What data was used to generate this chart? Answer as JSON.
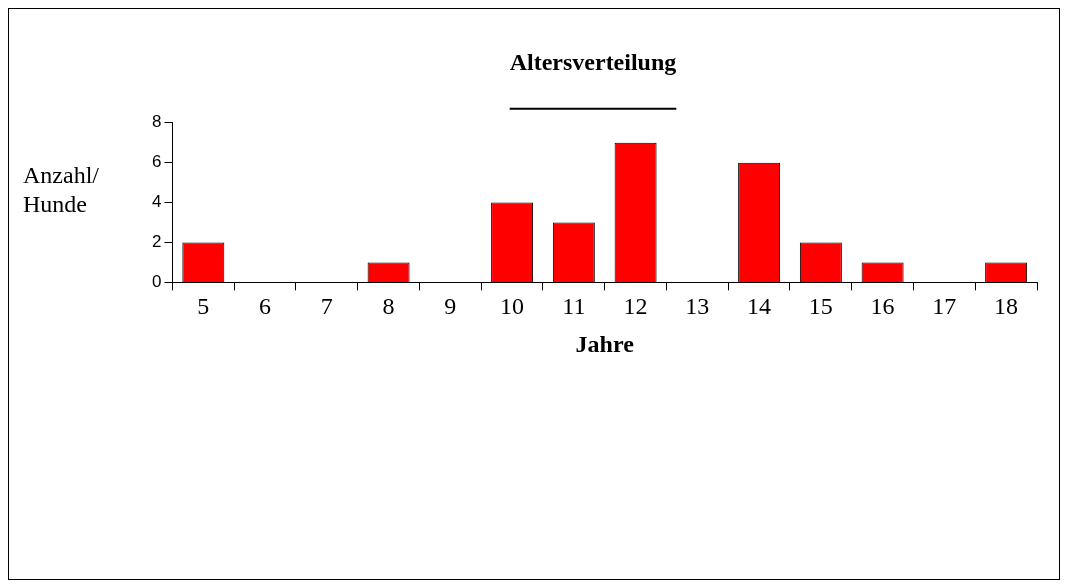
{
  "chart_data": {
    "type": "bar",
    "title": "Altersverteilung",
    "xlabel": "Jahre",
    "ylabel": "Anzahl/ Hunde",
    "categories": [
      "5",
      "6",
      "7",
      "8",
      "9",
      "10",
      "11",
      "12",
      "13",
      "14",
      "15",
      "16",
      "17",
      "18"
    ],
    "values": [
      2,
      0,
      0,
      1,
      0,
      4,
      3,
      7,
      0,
      6,
      2,
      1,
      0,
      1
    ],
    "color": "#ff0000",
    "ylim": [
      0,
      8
    ],
    "yticks": [
      0,
      2,
      4,
      6,
      8
    ],
    "grid": false,
    "legend": false
  }
}
